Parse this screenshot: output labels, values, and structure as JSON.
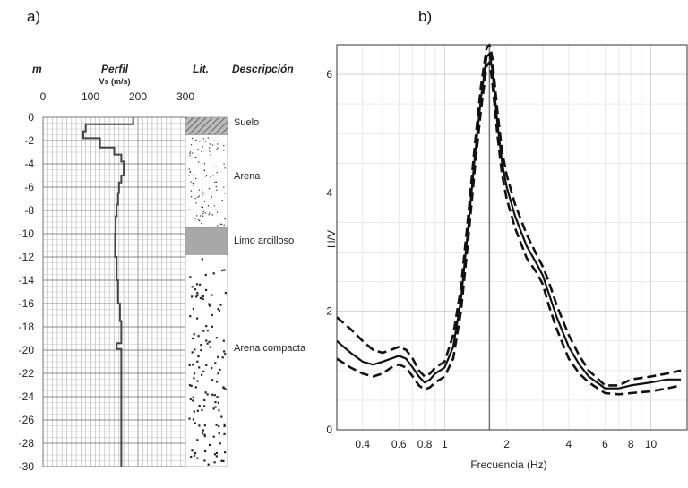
{
  "panels": {
    "a": "a)",
    "b": "b)"
  },
  "profile": {
    "headers": {
      "depth": "m",
      "profile": "Perfil",
      "vs_unit": "Vs (m/s)",
      "lithology": "Lit.",
      "description": "Descripción"
    },
    "x_ticks": [
      "0",
      "100",
      "200",
      "300"
    ],
    "x_range": [
      0,
      300
    ],
    "y_ticks": [
      "0",
      "-2",
      "-4",
      "-6",
      "-8",
      "-10",
      "-12",
      "-14",
      "-16",
      "-18",
      "-20",
      "-22",
      "-24",
      "-26",
      "-28",
      "-30"
    ],
    "y_range": [
      0,
      -30
    ],
    "vs_profile": [
      [
        190,
        0
      ],
      [
        190,
        -0.6
      ],
      [
        90,
        -0.6
      ],
      [
        90,
        -1.2
      ],
      [
        85,
        -1.2
      ],
      [
        85,
        -1.8
      ],
      [
        120,
        -1.8
      ],
      [
        120,
        -2.6
      ],
      [
        150,
        -2.6
      ],
      [
        150,
        -3.2
      ],
      [
        165,
        -3.2
      ],
      [
        165,
        -3.8
      ],
      [
        170,
        -3.8
      ],
      [
        170,
        -5
      ],
      [
        165,
        -5
      ],
      [
        165,
        -5.6
      ],
      [
        160,
        -5.6
      ],
      [
        160,
        -6.5
      ],
      [
        158,
        -6.5
      ],
      [
        158,
        -7.5
      ],
      [
        155,
        -7.5
      ],
      [
        155,
        -8.5
      ],
      [
        153,
        -8.5
      ],
      [
        153,
        -10
      ],
      [
        152,
        -10
      ],
      [
        152,
        -12
      ],
      [
        155,
        -12
      ],
      [
        155,
        -14
      ],
      [
        158,
        -14
      ],
      [
        158,
        -16
      ],
      [
        162,
        -16
      ],
      [
        162,
        -17.5
      ],
      [
        165,
        -17.5
      ],
      [
        165,
        -19.4
      ],
      [
        155,
        -19.4
      ],
      [
        155,
        -19.9
      ],
      [
        165,
        -19.9
      ],
      [
        165,
        -30
      ]
    ],
    "layers": [
      {
        "name": "Suelo",
        "top": 0,
        "bottom": -1.5,
        "pattern": "hatch"
      },
      {
        "name": "Arena",
        "top": -1.5,
        "bottom": -9.5,
        "pattern": "sparse-dots"
      },
      {
        "name": "Limo arcilloso",
        "top": -9.5,
        "bottom": -11.8,
        "pattern": "gray"
      },
      {
        "name": "Arena compacta",
        "top": -11.8,
        "bottom": -30,
        "pattern": "dense-dots"
      }
    ]
  },
  "chart_data": {
    "type": "line",
    "xlabel": "Frecuencia (Hz)",
    "ylabel": "H/V",
    "x_scale": "log",
    "xlim": [
      0.3,
      15
    ],
    "ylim": [
      0,
      6.5
    ],
    "x_ticks": [
      "0.4",
      "0.6",
      "0.8",
      "1",
      "2",
      "4",
      "6",
      "8",
      "10"
    ],
    "y_ticks": [
      "0",
      "2",
      "4",
      "6"
    ],
    "grid": true,
    "peak_frequency": 1.65,
    "series": [
      {
        "style": "solid",
        "x": [
          0.3,
          0.35,
          0.4,
          0.45,
          0.5,
          0.55,
          0.6,
          0.65,
          0.7,
          0.75,
          0.8,
          0.85,
          0.9,
          0.95,
          1.0,
          1.1,
          1.2,
          1.3,
          1.4,
          1.5,
          1.6,
          1.65,
          1.7,
          1.8,
          1.9,
          2.0,
          2.2,
          2.5,
          2.8,
          3.0,
          3.2,
          3.5,
          4.0,
          4.5,
          5.0,
          6.0,
          7.0,
          8.0,
          10.0,
          12.0,
          14.0
        ],
        "y": [
          1.5,
          1.3,
          1.15,
          1.1,
          1.15,
          1.2,
          1.25,
          1.2,
          1.05,
          0.9,
          0.8,
          0.85,
          0.95,
          1.0,
          1.05,
          1.4,
          2.2,
          3.4,
          4.6,
          5.6,
          6.3,
          6.35,
          6.1,
          5.2,
          4.5,
          4.1,
          3.6,
          3.1,
          2.8,
          2.6,
          2.3,
          1.9,
          1.4,
          1.1,
          0.9,
          0.7,
          0.7,
          0.75,
          0.8,
          0.85,
          0.85
        ]
      },
      {
        "style": "dashed",
        "x": [
          0.3,
          0.35,
          0.4,
          0.45,
          0.5,
          0.55,
          0.6,
          0.65,
          0.7,
          0.75,
          0.8,
          0.85,
          0.9,
          0.95,
          1.0,
          1.1,
          1.2,
          1.3,
          1.4,
          1.5,
          1.6,
          1.65,
          1.7,
          1.8,
          1.9,
          2.0,
          2.2,
          2.5,
          2.8,
          3.0,
          3.2,
          3.5,
          4.0,
          4.5,
          5.0,
          6.0,
          7.0,
          8.0,
          10.0,
          12.0,
          14.0
        ],
        "y": [
          1.9,
          1.7,
          1.5,
          1.35,
          1.3,
          1.35,
          1.4,
          1.35,
          1.2,
          1.0,
          0.9,
          0.95,
          1.05,
          1.1,
          1.15,
          1.6,
          2.4,
          3.6,
          4.8,
          5.8,
          6.45,
          6.5,
          6.3,
          5.4,
          4.7,
          4.3,
          3.8,
          3.3,
          2.95,
          2.75,
          2.5,
          2.1,
          1.6,
          1.25,
          1.0,
          0.75,
          0.75,
          0.85,
          0.9,
          0.95,
          1.0
        ]
      },
      {
        "style": "dashed",
        "x": [
          0.3,
          0.35,
          0.4,
          0.45,
          0.5,
          0.55,
          0.6,
          0.65,
          0.7,
          0.75,
          0.8,
          0.85,
          0.9,
          0.95,
          1.0,
          1.1,
          1.2,
          1.3,
          1.4,
          1.5,
          1.6,
          1.65,
          1.7,
          1.8,
          1.9,
          2.0,
          2.2,
          2.5,
          2.8,
          3.0,
          3.2,
          3.5,
          4.0,
          4.5,
          5.0,
          6.0,
          7.0,
          8.0,
          10.0,
          12.0,
          14.0
        ],
        "y": [
          1.2,
          1.05,
          0.95,
          0.9,
          0.95,
          1.05,
          1.1,
          1.05,
          0.9,
          0.75,
          0.68,
          0.72,
          0.8,
          0.85,
          0.9,
          1.2,
          2.0,
          3.2,
          4.4,
          5.4,
          6.15,
          6.2,
          5.9,
          5.0,
          4.3,
          3.9,
          3.4,
          2.9,
          2.65,
          2.45,
          2.1,
          1.7,
          1.2,
          0.95,
          0.8,
          0.62,
          0.6,
          0.62,
          0.65,
          0.7,
          0.75
        ]
      }
    ]
  }
}
